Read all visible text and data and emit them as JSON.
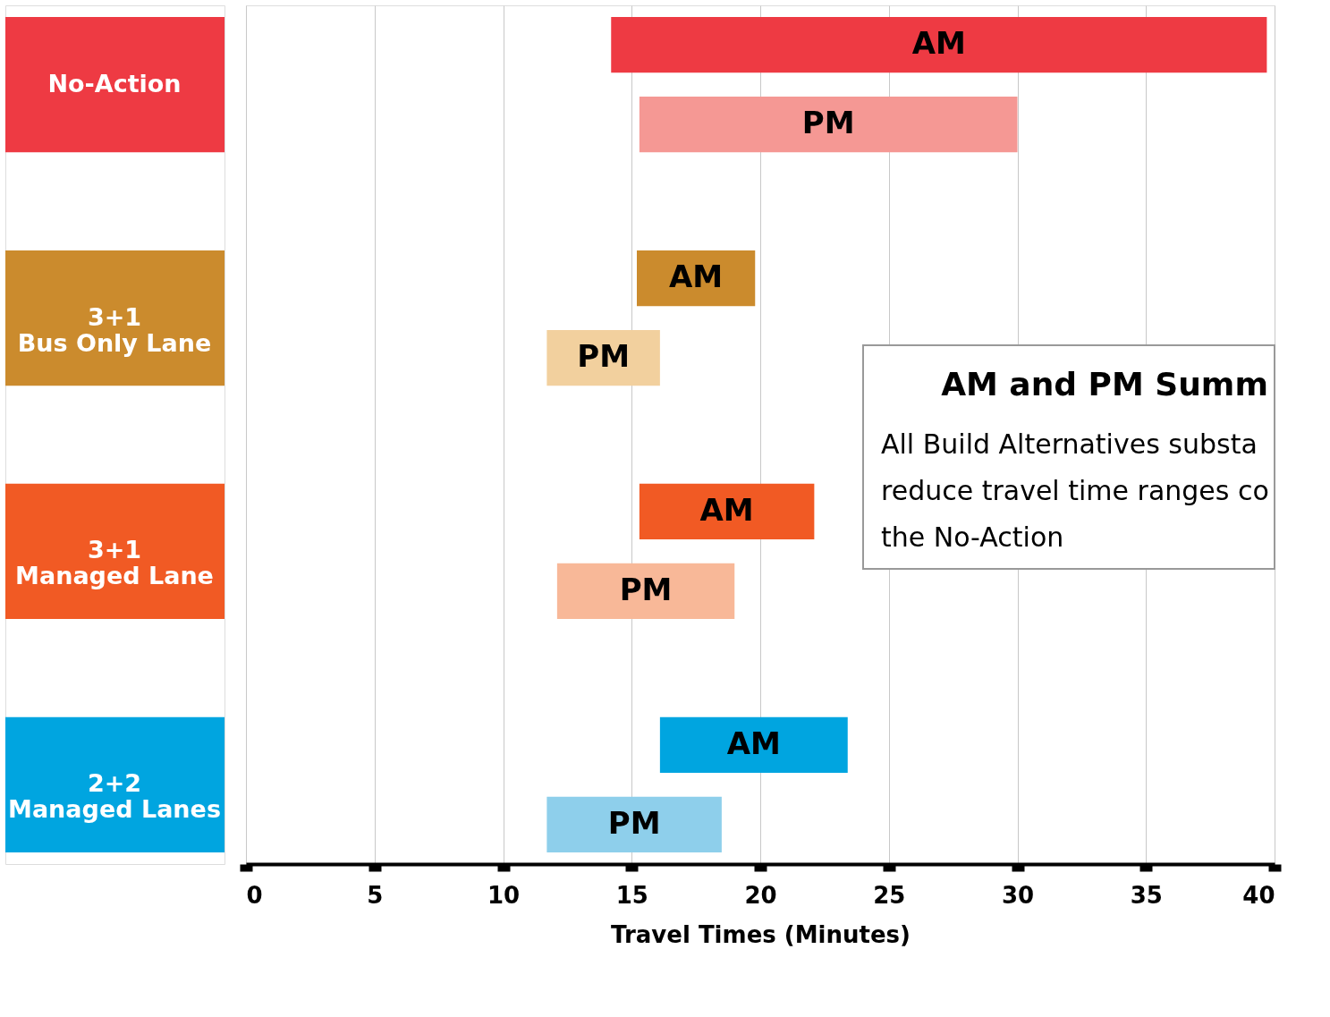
{
  "chart_data": {
    "type": "bar",
    "orientation": "horizontal",
    "categories": [
      "No-Action",
      "3+1\nBus Only Lane",
      "3+1\nManaged Lane",
      "2+2\nManaged Lanes"
    ],
    "series": [
      {
        "name": "AM",
        "colors": [
          "#ee3a43",
          "#cb8b2d",
          "#f15a24",
          "#00a5e0"
        ],
        "base": [
          14.2,
          15.2,
          15.3,
          16.1
        ],
        "values": [
          25.5,
          4.6,
          6.8,
          7.3
        ]
      },
      {
        "name": "PM",
        "colors": [
          "#f59894",
          "#f2d09e",
          "#f8b898",
          "#8ecfeb"
        ],
        "base": [
          15.3,
          11.7,
          12.1,
          11.7
        ],
        "values": [
          14.7,
          4.4,
          6.9,
          6.8
        ]
      }
    ],
    "xlim": [
      0,
      40
    ],
    "xticks": [
      0,
      5,
      10,
      15,
      20,
      25,
      30,
      35,
      40
    ],
    "xlabel": "Travel Times (Minutes)",
    "grid": "x",
    "annotations": [
      "AM and PM Summ",
      "All Build Alternatives substa",
      "reduce travel time ranges co",
      "the No-Action"
    ]
  }
}
